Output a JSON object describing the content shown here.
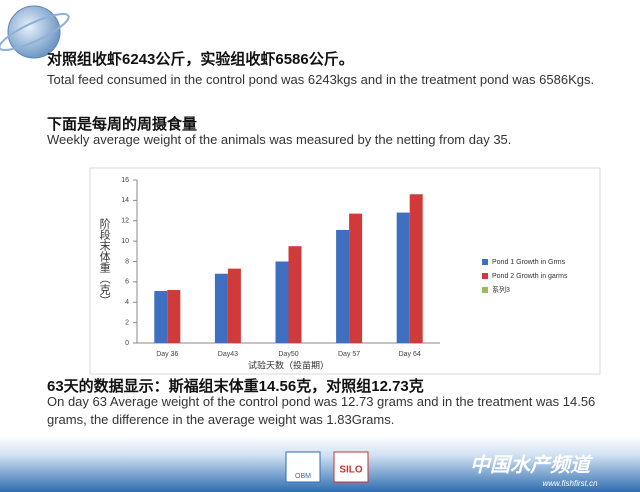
{
  "heading1": "对照组收虾6243公斤，实验组收虾6586公斤。",
  "para1": "Total feed consumed in the control pond was 6243kgs and in the treatment pond was 6586Kgs.",
  "heading2": "下面是每周的周摄食量",
  "para2": "Weekly average weight of the animals was measured by the netting from day 35.",
  "heading3": "63天的数据显示：斯福组末体重14.56克，对照组12.73克",
  "para3": "On day 63 Average weight of the control pond was 12.73 grams and in the treatment was 14.56 grams, the difference in the average weight was 1.83Grams.",
  "footer": {
    "brand": "中国水产频道",
    "url": "www.fishfirst.cn",
    "logo1": "OBM",
    "logo2": "SILO"
  },
  "chart_data": {
    "type": "bar",
    "categories": [
      "Day 36",
      "Day43",
      "Day50",
      "Day 57",
      "Day 64"
    ],
    "series": [
      {
        "name": "Pond 1 Growth in Grms",
        "color": "#3f6fc0",
        "values": [
          5.1,
          6.8,
          8.0,
          11.1,
          12.8
        ]
      },
      {
        "name": "Pond 2 Growth in garms",
        "color": "#d03a3a",
        "values": [
          5.2,
          7.3,
          9.5,
          12.7,
          14.6
        ]
      },
      {
        "name": "系列3",
        "color": "#9bbb59",
        "values": [
          null,
          null,
          null,
          null,
          null
        ]
      }
    ],
    "ylim": [
      0,
      16
    ],
    "yticks": [
      0,
      2,
      4,
      6,
      8,
      10,
      12,
      14,
      16
    ],
    "x_label": "试验天数（投苗期）",
    "y_label": "阶段末体重（克）",
    "legend": "right"
  }
}
